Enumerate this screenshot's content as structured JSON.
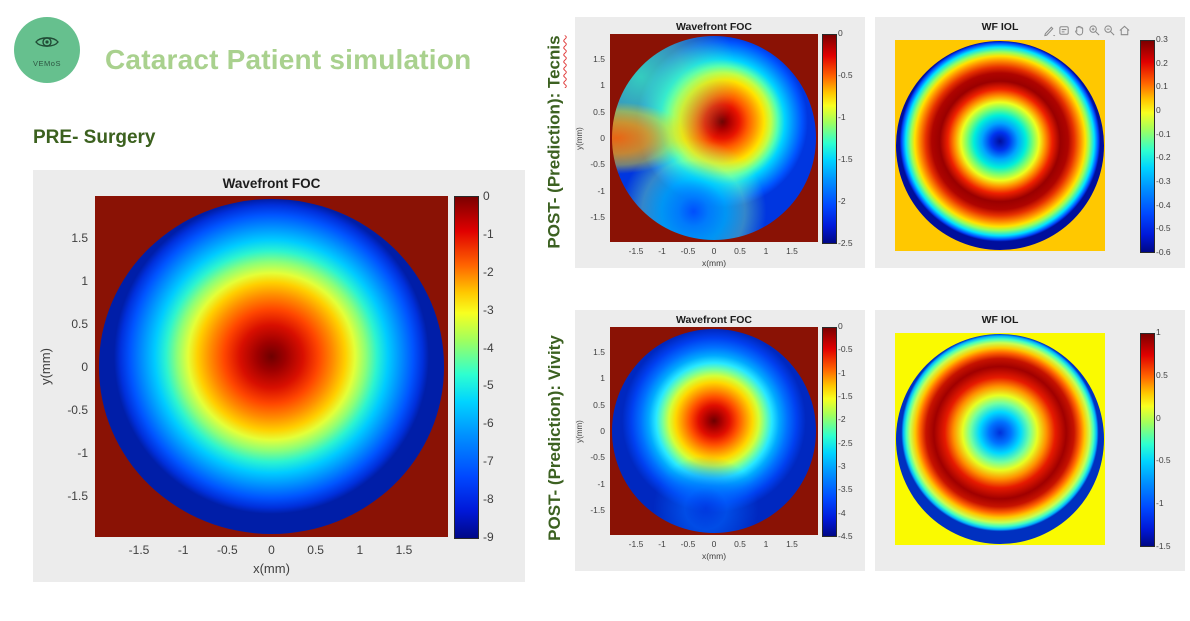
{
  "logo": {
    "text": "VEMoS",
    "color": "#66c08e"
  },
  "header": {
    "title": "Cataract Patient simulation",
    "color": "#a9d18e"
  },
  "sections": {
    "pre": {
      "label": "PRE- Surgery",
      "color": "#3c611f"
    },
    "tecnis": {
      "prefix": "POST- (Prediction): ",
      "word": "Tecnis",
      "misspelled_underline": "red-wavy"
    },
    "vivity": {
      "prefix": "POST- (Prediction): ",
      "word": "Vivity"
    }
  },
  "colors": {
    "panel_background": "#ececec",
    "out_of_pupil_red": "#8a1205",
    "tecnis_iol_background": "#ffc800",
    "vivity_iol_background": "#fafa00",
    "section_label_green": "#3c6121",
    "squiggle_red": "#e03a3a"
  },
  "chart_data": [
    {
      "id": "pre_surgery_wavefront_foc",
      "type": "heatmap",
      "title": "Wavefront FOC",
      "xlabel": "x(mm)",
      "ylabel": "y(mm)",
      "x_ticks": [
        -1.5,
        -1,
        -0.5,
        0,
        0.5,
        1,
        1.5
      ],
      "y_ticks": [
        1.5,
        1,
        0.5,
        0,
        -0.5,
        -1,
        -1.5
      ],
      "x_range": [
        -2,
        2
      ],
      "y_range": [
        -2,
        2
      ],
      "colormap": "jet",
      "colorbar_ticks": [
        0,
        -1,
        -2,
        -3,
        -4,
        -5,
        -6,
        -7,
        -8,
        -9
      ],
      "value_range": [
        -9,
        0
      ],
      "pattern": "circular pupil wavefront: maximum 0 (dark red) near centre, decreasing radially through orange/yellow/green/cyan to deep blue (about -8.5) at the pupil edge; region outside pupil saturates dark red",
      "radial_profile": {
        "r_mm": [
          0,
          0.5,
          1,
          1.5,
          2
        ],
        "value": [
          0,
          -0.8,
          -2.5,
          -5,
          -8.5
        ]
      }
    },
    {
      "id": "tecnis_wavefront_foc",
      "type": "heatmap",
      "title": "Wavefront FOC",
      "xlabel": "x(mm)",
      "ylabel": "y(mm)",
      "x_ticks": [
        -1.5,
        -1,
        -0.5,
        0,
        0.5,
        1,
        1.5
      ],
      "y_ticks": [
        1.5,
        1,
        0.5,
        0,
        -0.5,
        -1,
        -1.5
      ],
      "x_range": [
        -2,
        2
      ],
      "y_range": [
        -2,
        2
      ],
      "colormap": "jet",
      "colorbar_ticks": [
        0,
        -0.5,
        -1,
        -1.5,
        -2,
        -2.5
      ],
      "value_range": [
        -2.8,
        0
      ],
      "pattern": "irregular wavefront: dark-red plateau around centre extending toward left edge, deep blue lobe at top-right, cyan-green patch at top-left, localized blue dip near bottom centre",
      "radial_profile": {
        "r_mm": [
          0,
          0.5,
          1,
          1.5,
          2
        ],
        "value": [
          0,
          -0.3,
          -0.9,
          -1.8,
          -2.6
        ]
      }
    },
    {
      "id": "tecnis_wf_iol",
      "type": "heatmap",
      "title": "WF IOL",
      "xlabel": "",
      "ylabel": "",
      "colormap": "jet",
      "colorbar_ticks": [
        0.3,
        0.2,
        0.1,
        0,
        -0.1,
        -0.2,
        -0.3,
        -0.4,
        -0.5,
        -0.6
      ],
      "value_range": [
        -0.6,
        0.3
      ],
      "plot_background": "#ffc800",
      "pattern": "rotationally symmetric IOL wavefront: deep-blue core (~ -0.55) rising through cyan/green/yellow to a thick dark-red annulus (~ +0.3) at 60-70% radius, then falling back through the rainbow to a thin deep-blue rim (~ -0.6)",
      "radial_profile": {
        "r_norm": [
          0,
          0.25,
          0.4,
          0.65,
          0.85,
          1
        ],
        "value": [
          -0.55,
          -0.25,
          0.05,
          0.3,
          0,
          -0.6
        ]
      },
      "toolbar_icons": [
        "brush",
        "datatip",
        "pan",
        "zoom-in",
        "zoom-out",
        "home"
      ]
    },
    {
      "id": "vivity_wavefront_foc",
      "type": "heatmap",
      "title": "Wavefront FOC",
      "xlabel": "x(mm)",
      "ylabel": "y(mm)",
      "x_ticks": [
        -1.5,
        -1,
        -0.5,
        0,
        0.5,
        1,
        1.5
      ],
      "y_ticks": [
        1.5,
        1,
        0.5,
        0,
        -0.5,
        -1,
        -1.5
      ],
      "x_range": [
        -2,
        2
      ],
      "y_range": [
        -2,
        2
      ],
      "colormap": "jet",
      "colorbar_ticks": [
        0,
        -0.5,
        -1,
        -1.5,
        -2,
        -2.5,
        -3,
        -3.5,
        -4,
        -4.5
      ],
      "value_range": [
        -4.8,
        0
      ],
      "pattern": "near-circular wavefront: dark-red centre plateau, falling through yellow/green ring to a broad blue margin, darkest blue near the bottom edge of the pupil",
      "radial_profile": {
        "r_mm": [
          0,
          0.5,
          1,
          1.5,
          2
        ],
        "value": [
          0,
          -0.5,
          -1.6,
          -3.1,
          -4.4
        ]
      }
    },
    {
      "id": "vivity_wf_iol",
      "type": "heatmap",
      "title": "WF IOL",
      "xlabel": "",
      "ylabel": "",
      "colormap": "jet",
      "colorbar_ticks": [
        1,
        0.5,
        0,
        -0.5,
        -1,
        -1.5
      ],
      "value_range": [
        -1.5,
        1
      ],
      "plot_background": "#fafa00",
      "pattern": "rotationally symmetric IOL wavefront: blue core (~ -1.2), thick dark-red annulus (~ +1) at 65-75% radius, green-cyan rim band and a thin deep-blue edge (~ -1.5)",
      "radial_profile": {
        "r_norm": [
          0,
          0.3,
          0.5,
          0.7,
          0.9,
          1
        ],
        "value": [
          -1.2,
          -0.4,
          0.4,
          1,
          -0.2,
          -1.5
        ]
      }
    }
  ]
}
